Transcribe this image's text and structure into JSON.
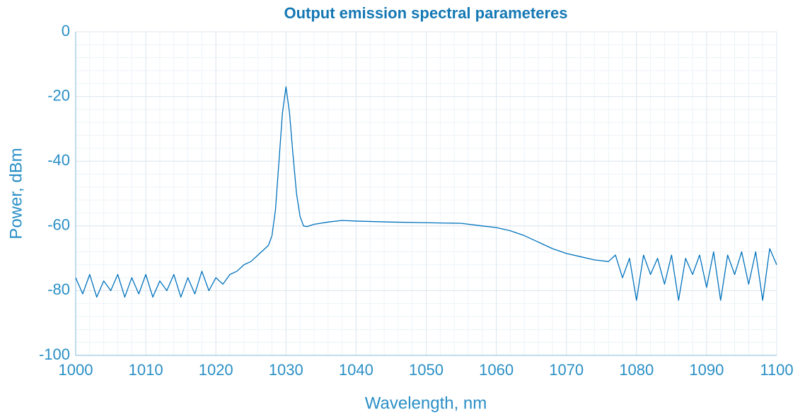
{
  "chart_data": {
    "type": "line",
    "title": "Output emission spectral parameteres",
    "x_label": "Wavelength, nm",
    "y_label": "Power, dBm",
    "x": [
      1000,
      1001,
      1002,
      1003,
      1004,
      1005,
      1006,
      1007,
      1008,
      1009,
      1010,
      1011,
      1012,
      1013,
      1014,
      1015,
      1016,
      1017,
      1018,
      1019,
      1020,
      1021,
      1022,
      1023,
      1024,
      1025,
      1026,
      1027,
      1027.5,
      1028,
      1028.5,
      1029,
      1029.5,
      1030,
      1030.5,
      1031,
      1031.5,
      1032,
      1032.5,
      1033,
      1034,
      1036,
      1038,
      1040,
      1045,
      1050,
      1055,
      1058,
      1060,
      1062,
      1064,
      1066,
      1068,
      1070,
      1072,
      1074,
      1076,
      1077,
      1078,
      1079,
      1080,
      1081,
      1082,
      1083,
      1084,
      1085,
      1086,
      1087,
      1088,
      1089,
      1090,
      1091,
      1092,
      1093,
      1094,
      1095,
      1096,
      1097,
      1098,
      1099,
      1100
    ],
    "series": [
      {
        "name": "Power",
        "color": "#0072bd",
        "values": [
          -76,
          -81,
          -75,
          -82,
          -77,
          -80,
          -75,
          -82,
          -76,
          -81,
          -75,
          -82,
          -77,
          -80,
          -75,
          -82,
          -76,
          -81,
          -74,
          -80,
          -76,
          -78,
          -75,
          -74,
          -72,
          -71,
          -69,
          -67,
          -66,
          -63,
          -55,
          -40,
          -25,
          -17,
          -25,
          -38,
          -50,
          -57,
          -60,
          -60.2,
          -59.5,
          -58.8,
          -58.3,
          -58.5,
          -58.8,
          -59,
          -59.2,
          -60,
          -60.5,
          -61.5,
          -63,
          -65,
          -67,
          -68.5,
          -69.5,
          -70.5,
          -71,
          -69,
          -76,
          -70,
          -83,
          -69,
          -75,
          -70,
          -78,
          -69,
          -83,
          -70,
          -75,
          -69,
          -79,
          -68,
          -83,
          -69,
          -75,
          -68,
          -78,
          -68,
          -83,
          -67,
          -72
        ]
      }
    ],
    "xlim": [
      1000,
      1100
    ],
    "xticks": [
      1000,
      1010,
      1020,
      1030,
      1040,
      1050,
      1060,
      1070,
      1080,
      1090,
      1100
    ],
    "ylim": [
      -100,
      0
    ],
    "yticks": [
      -100,
      -80,
      -60,
      -40,
      -20,
      0
    ],
    "grid": true,
    "minor_grid": true
  }
}
